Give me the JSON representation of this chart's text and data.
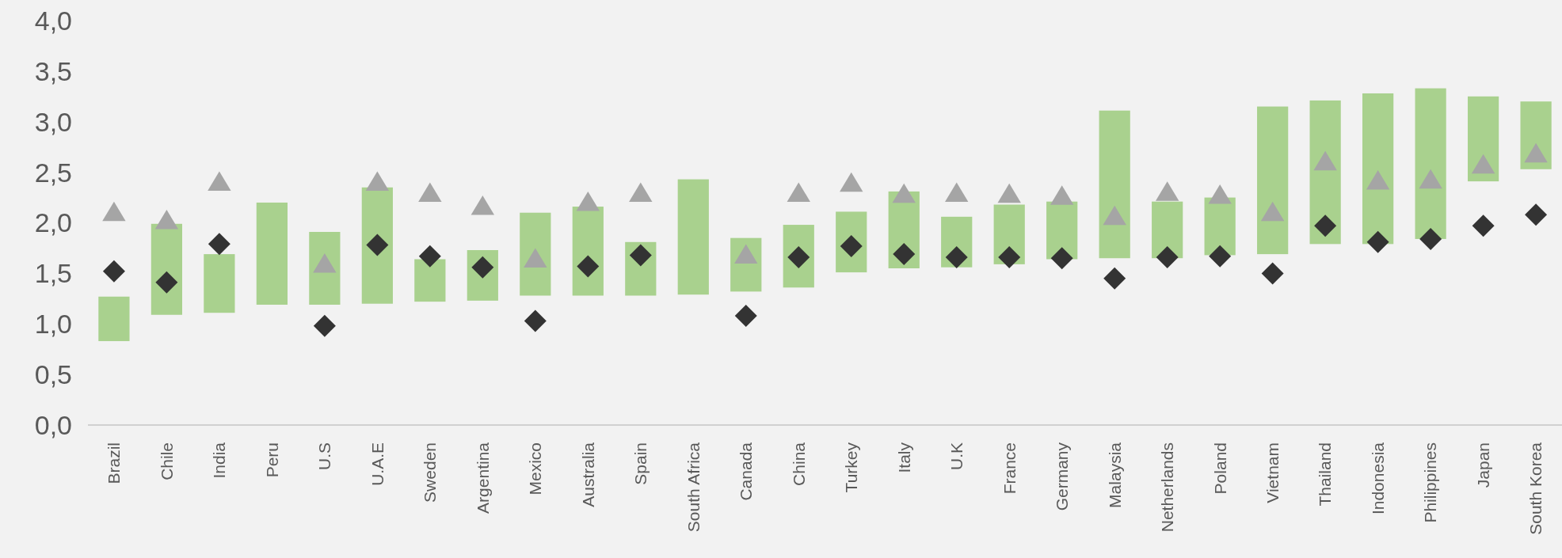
{
  "chart_data": {
    "type": "bar",
    "categories": [
      "Brazil",
      "Chile",
      "India",
      "Peru",
      "U.S",
      "U.A.E",
      "Sweden",
      "Argentina",
      "Mexico",
      "Australia",
      "Spain",
      "South Africa",
      "Canada",
      "China",
      "Turkey",
      "Italy",
      "U.K",
      "France",
      "Germany",
      "Malaysia",
      "Netherlands",
      "Poland",
      "Vietnam",
      "Thailand",
      "Indonesia",
      "Philippines",
      "Japan",
      "South Korea"
    ],
    "ylim": [
      0,
      4
    ],
    "yticks": [
      {
        "value": 0,
        "label": "0,0"
      },
      {
        "value": 0.5,
        "label": "0,5"
      },
      {
        "value": 1,
        "label": "1,0"
      },
      {
        "value": 1.5,
        "label": "1,5"
      },
      {
        "value": 2,
        "label": "2,0"
      },
      {
        "value": 2.5,
        "label": "2,5"
      },
      {
        "value": 3,
        "label": "3,0"
      },
      {
        "value": 3.5,
        "label": "3,5"
      },
      {
        "value": 4,
        "label": "4,0"
      }
    ],
    "grid": false,
    "series": [
      {
        "color": "#a9d18e",
        "base": [
          0.83,
          1.09,
          1.11,
          1.19,
          1.19,
          1.2,
          1.22,
          1.23,
          1.28,
          1.28,
          1.28,
          1.29,
          1.32,
          1.36,
          1.51,
          1.55,
          1.56,
          1.59,
          1.64,
          1.65,
          1.65,
          1.68,
          1.69,
          1.79,
          1.79,
          1.84,
          2.41,
          2.53
        ],
        "values": [
          0.44,
          0.9,
          0.58,
          1.01,
          0.72,
          1.15,
          0.42,
          0.5,
          0.82,
          0.88,
          0.53,
          1.14,
          0.53,
          0.62,
          0.6,
          0.76,
          0.5,
          0.59,
          0.57,
          1.46,
          0.56,
          0.57,
          1.46,
          1.42,
          1.49,
          1.49,
          0.84,
          0.67
        ]
      },
      {
        "type": "scatter",
        "marker": "triangle",
        "color": "#a5a5a5",
        "values": [
          2.1,
          2.02,
          2.4,
          null,
          1.59,
          2.4,
          2.29,
          2.16,
          1.64,
          2.2,
          2.29,
          null,
          1.68,
          2.29,
          2.39,
          2.28,
          2.29,
          2.28,
          2.26,
          2.06,
          2.3,
          2.27,
          2.1,
          2.6,
          2.41,
          2.42,
          2.57,
          2.68
        ]
      },
      {
        "type": "scatter",
        "marker": "diamond",
        "color": "#333333",
        "values": [
          1.52,
          1.41,
          1.79,
          null,
          0.98,
          1.78,
          1.67,
          1.56,
          1.03,
          1.57,
          1.68,
          null,
          1.08,
          1.66,
          1.77,
          1.69,
          1.66,
          1.66,
          1.65,
          1.45,
          1.66,
          1.67,
          1.5,
          1.97,
          1.81,
          1.84,
          1.97,
          2.08
        ]
      }
    ]
  }
}
